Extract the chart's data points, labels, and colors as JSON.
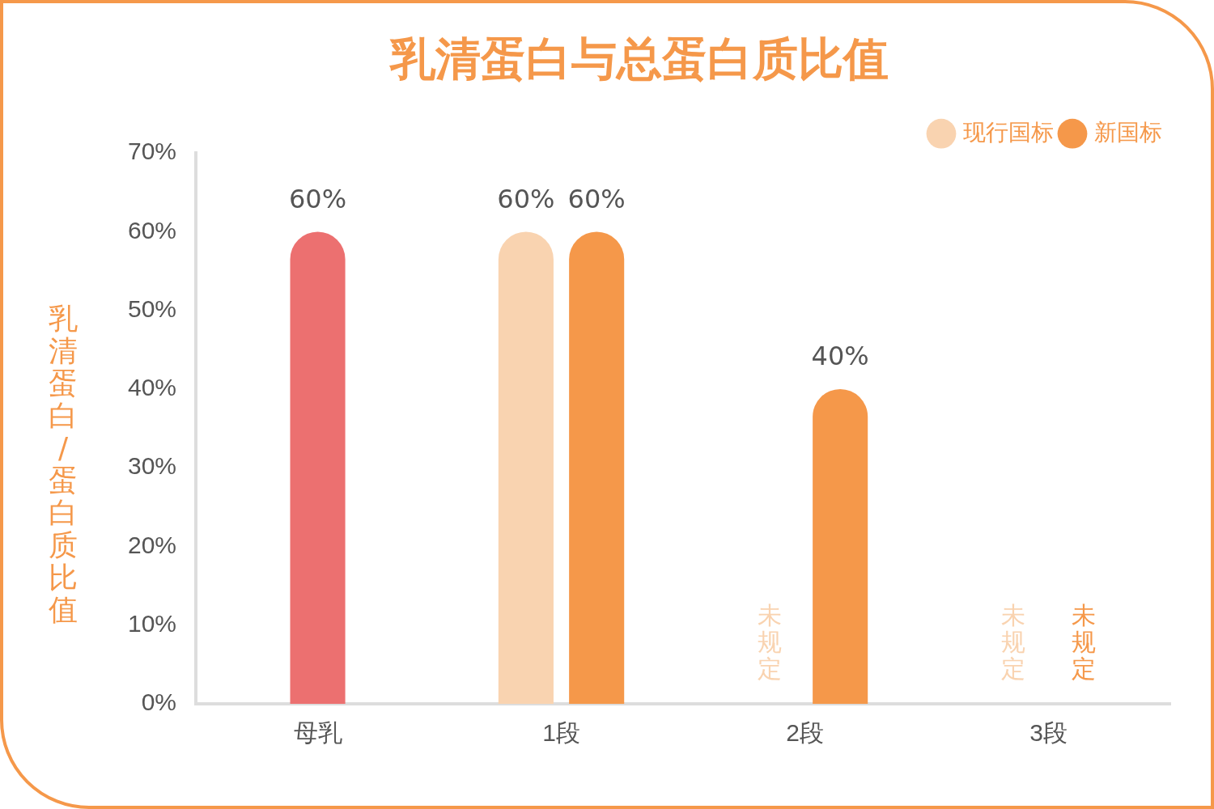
{
  "chart_data": {
    "type": "bar",
    "title": "乳清蛋白与总蛋白质比值",
    "ylabel": "乳清蛋白/蛋白质比值",
    "categories": [
      "母乳",
      "1段",
      "2段",
      "3段"
    ],
    "series": [
      {
        "color": "#ec7070",
        "values": [
          60,
          null,
          null,
          null
        ],
        "value_labels": [
          "60%",
          null,
          null,
          null
        ]
      },
      {
        "name": "现行国标",
        "color": "#f9d3b0",
        "values": [
          null,
          60,
          null,
          null
        ],
        "value_labels": [
          null,
          "60%",
          "未规定",
          "未规定"
        ]
      },
      {
        "name": "新国标",
        "color": "#f5984a",
        "values": [
          null,
          60,
          40,
          null
        ],
        "value_labels": [
          null,
          "60%",
          "40%",
          "未规定"
        ]
      }
    ],
    "ylim": [
      0,
      70
    ],
    "yticks": [
      {
        "value": 0,
        "label": "0%"
      },
      {
        "value": 10,
        "label": "10%"
      },
      {
        "value": 20,
        "label": "20%"
      },
      {
        "value": 30,
        "label": "30%"
      },
      {
        "value": 40,
        "label": "40%"
      },
      {
        "value": 50,
        "label": "50%"
      },
      {
        "value": 60,
        "label": "60%"
      },
      {
        "value": 70,
        "label": "70%"
      }
    ],
    "grid": false,
    "legend": "top right"
  }
}
